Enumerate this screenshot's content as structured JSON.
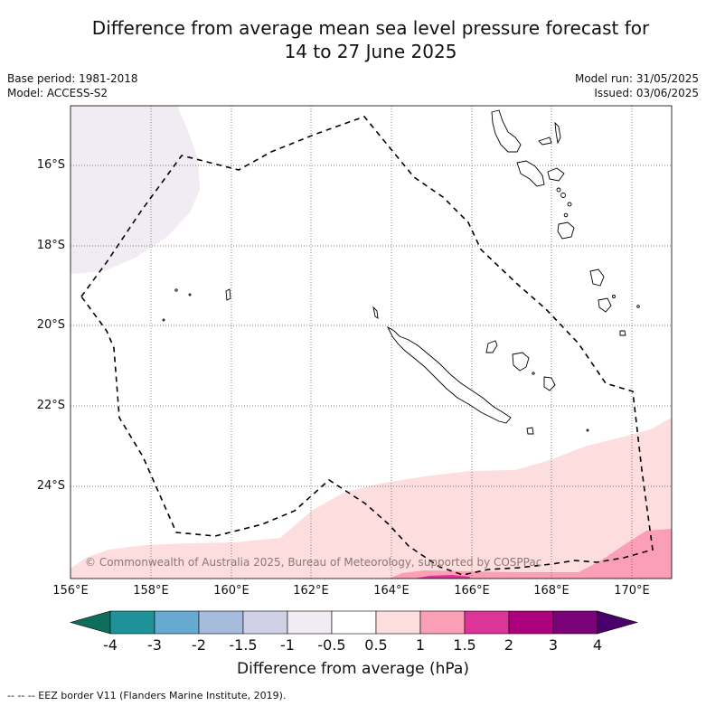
{
  "title": {
    "line1": "Difference from average mean sea level pressure forecast for",
    "line2": "14 to 27 June 2025"
  },
  "meta": {
    "base_period": "Base period: 1981-2018",
    "model": "Model: ACCESS-S2",
    "model_run": "Model run: 31/05/2025",
    "issued": "Issued: 03/06/2025"
  },
  "map": {
    "lat_labels": [
      "16°S",
      "18°S",
      "20°S",
      "22°S",
      "24°S"
    ],
    "lon_labels": [
      "156°E",
      "158°E",
      "160°E",
      "162°E",
      "164°E",
      "166°E",
      "168°E",
      "170°E"
    ],
    "copyright": "© Commonwealth of Australia 2025, Bureau of Meteorology, supported by COSPPac",
    "shading": {
      "light_lavender_nw": "-1 to -0.5 hPa",
      "light_pink_south": "0.5 to 1 hPa",
      "pink_southeast": "1 to 1.5 hPa",
      "magenta_south": "1.5 to 2 hPa"
    }
  },
  "colorbar": {
    "labels": [
      "-4",
      "-3",
      "-2",
      "-1.5",
      "-1",
      "-0.5",
      "0.5",
      "1",
      "1.5",
      "2",
      "3",
      "4"
    ],
    "colors": [
      "#0e6e5e",
      "#1e9199",
      "#66aad2",
      "#a6bcdd",
      "#d0d1e6",
      "#f1ebf4",
      "#ffffff",
      "#fddddd",
      "#fa9fb5",
      "#dd3497",
      "#ae017e",
      "#7a0177",
      "#49006a"
    ],
    "title": "Difference from average (hPa)"
  },
  "footer": "-- -- -- EEZ border V11 (Flanders Marine Institute, 2019)."
}
